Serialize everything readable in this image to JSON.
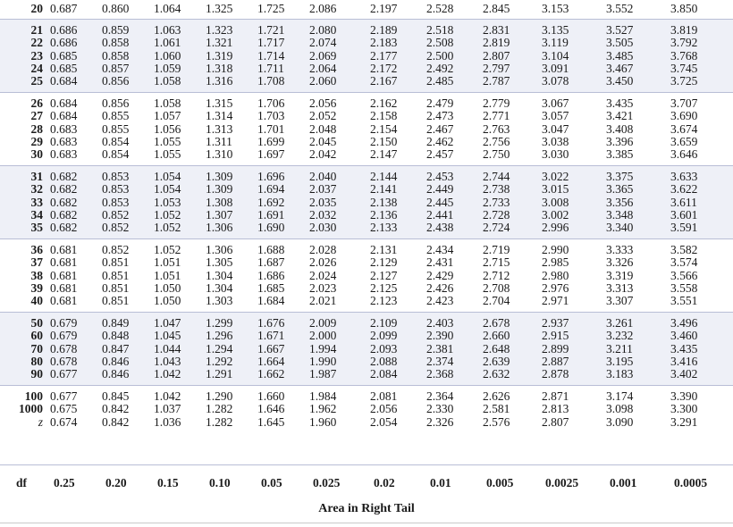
{
  "table": {
    "columns": [
      "0.25",
      "0.20",
      "0.15",
      "0.10",
      "0.05",
      "0.025",
      "0.02",
      "0.01",
      "0.005",
      "0.0025",
      "0.001",
      "0.0005"
    ],
    "rows": [
      {
        "df": "20",
        "values": [
          "0.687",
          "0.860",
          "1.064",
          "1.325",
          "1.725",
          "2.086",
          "2.197",
          "2.528",
          "2.845",
          "3.153",
          "3.552",
          "3.850"
        ]
      },
      {
        "df": "21",
        "values": [
          "0.686",
          "0.859",
          "1.063",
          "1.323",
          "1.721",
          "2.080",
          "2.189",
          "2.518",
          "2.831",
          "3.135",
          "3.527",
          "3.819"
        ]
      },
      {
        "df": "22",
        "values": [
          "0.686",
          "0.858",
          "1.061",
          "1.321",
          "1.717",
          "2.074",
          "2.183",
          "2.508",
          "2.819",
          "3.119",
          "3.505",
          "3.792"
        ]
      },
      {
        "df": "23",
        "values": [
          "0.685",
          "0.858",
          "1.060",
          "1.319",
          "1.714",
          "2.069",
          "2.177",
          "2.500",
          "2.807",
          "3.104",
          "3.485",
          "3.768"
        ]
      },
      {
        "df": "24",
        "values": [
          "0.685",
          "0.857",
          "1.059",
          "1.318",
          "1.711",
          "2.064",
          "2.172",
          "2.492",
          "2.797",
          "3.091",
          "3.467",
          "3.745"
        ]
      },
      {
        "df": "25",
        "values": [
          "0.684",
          "0.856",
          "1.058",
          "1.316",
          "1.708",
          "2.060",
          "2.167",
          "2.485",
          "2.787",
          "3.078",
          "3.450",
          "3.725"
        ]
      },
      {
        "df": "26",
        "values": [
          "0.684",
          "0.856",
          "1.058",
          "1.315",
          "1.706",
          "2.056",
          "2.162",
          "2.479",
          "2.779",
          "3.067",
          "3.435",
          "3.707"
        ]
      },
      {
        "df": "27",
        "values": [
          "0.684",
          "0.855",
          "1.057",
          "1.314",
          "1.703",
          "2.052",
          "2.158",
          "2.473",
          "2.771",
          "3.057",
          "3.421",
          "3.690"
        ]
      },
      {
        "df": "28",
        "values": [
          "0.683",
          "0.855",
          "1.056",
          "1.313",
          "1.701",
          "2.048",
          "2.154",
          "2.467",
          "2.763",
          "3.047",
          "3.408",
          "3.674"
        ]
      },
      {
        "df": "29",
        "values": [
          "0.683",
          "0.854",
          "1.055",
          "1.311",
          "1.699",
          "2.045",
          "2.150",
          "2.462",
          "2.756",
          "3.038",
          "3.396",
          "3.659"
        ]
      },
      {
        "df": "30",
        "values": [
          "0.683",
          "0.854",
          "1.055",
          "1.310",
          "1.697",
          "2.042",
          "2.147",
          "2.457",
          "2.750",
          "3.030",
          "3.385",
          "3.646"
        ]
      },
      {
        "df": "31",
        "values": [
          "0.682",
          "0.853",
          "1.054",
          "1.309",
          "1.696",
          "2.040",
          "2.144",
          "2.453",
          "2.744",
          "3.022",
          "3.375",
          "3.633"
        ]
      },
      {
        "df": "32",
        "values": [
          "0.682",
          "0.853",
          "1.054",
          "1.309",
          "1.694",
          "2.037",
          "2.141",
          "2.449",
          "2.738",
          "3.015",
          "3.365",
          "3.622"
        ]
      },
      {
        "df": "33",
        "values": [
          "0.682",
          "0.853",
          "1.053",
          "1.308",
          "1.692",
          "2.035",
          "2.138",
          "2.445",
          "2.733",
          "3.008",
          "3.356",
          "3.611"
        ]
      },
      {
        "df": "34",
        "values": [
          "0.682",
          "0.852",
          "1.052",
          "1.307",
          "1.691",
          "2.032",
          "2.136",
          "2.441",
          "2.728",
          "3.002",
          "3.348",
          "3.601"
        ]
      },
      {
        "df": "35",
        "values": [
          "0.682",
          "0.852",
          "1.052",
          "1.306",
          "1.690",
          "2.030",
          "2.133",
          "2.438",
          "2.724",
          "2.996",
          "3.340",
          "3.591"
        ]
      },
      {
        "df": "36",
        "values": [
          "0.681",
          "0.852",
          "1.052",
          "1.306",
          "1.688",
          "2.028",
          "2.131",
          "2.434",
          "2.719",
          "2.990",
          "3.333",
          "3.582"
        ]
      },
      {
        "df": "37",
        "values": [
          "0.681",
          "0.851",
          "1.051",
          "1.305",
          "1.687",
          "2.026",
          "2.129",
          "2.431",
          "2.715",
          "2.985",
          "3.326",
          "3.574"
        ]
      },
      {
        "df": "38",
        "values": [
          "0.681",
          "0.851",
          "1.051",
          "1.304",
          "1.686",
          "2.024",
          "2.127",
          "2.429",
          "2.712",
          "2.980",
          "3.319",
          "3.566"
        ]
      },
      {
        "df": "39",
        "values": [
          "0.681",
          "0.851",
          "1.050",
          "1.304",
          "1.685",
          "2.023",
          "2.125",
          "2.426",
          "2.708",
          "2.976",
          "3.313",
          "3.558"
        ]
      },
      {
        "df": "40",
        "values": [
          "0.681",
          "0.851",
          "1.050",
          "1.303",
          "1.684",
          "2.021",
          "2.123",
          "2.423",
          "2.704",
          "2.971",
          "3.307",
          "3.551"
        ]
      },
      {
        "df": "50",
        "values": [
          "0.679",
          "0.849",
          "1.047",
          "1.299",
          "1.676",
          "2.009",
          "2.109",
          "2.403",
          "2.678",
          "2.937",
          "3.261",
          "3.496"
        ]
      },
      {
        "df": "60",
        "values": [
          "0.679",
          "0.848",
          "1.045",
          "1.296",
          "1.671",
          "2.000",
          "2.099",
          "2.390",
          "2.660",
          "2.915",
          "3.232",
          "3.460"
        ]
      },
      {
        "df": "70",
        "values": [
          "0.678",
          "0.847",
          "1.044",
          "1.294",
          "1.667",
          "1.994",
          "2.093",
          "2.381",
          "2.648",
          "2.899",
          "3.211",
          "3.435"
        ]
      },
      {
        "df": "80",
        "values": [
          "0.678",
          "0.846",
          "1.043",
          "1.292",
          "1.664",
          "1.990",
          "2.088",
          "2.374",
          "2.639",
          "2.887",
          "3.195",
          "3.416"
        ]
      },
      {
        "df": "90",
        "values": [
          "0.677",
          "0.846",
          "1.042",
          "1.291",
          "1.662",
          "1.987",
          "2.084",
          "2.368",
          "2.632",
          "2.878",
          "3.183",
          "3.402"
        ]
      },
      {
        "df": "100",
        "values": [
          "0.677",
          "0.845",
          "1.042",
          "1.290",
          "1.660",
          "1.984",
          "2.081",
          "2.364",
          "2.626",
          "2.871",
          "3.174",
          "3.390"
        ]
      },
      {
        "df": "1000",
        "values": [
          "0.675",
          "0.842",
          "1.037",
          "1.282",
          "1.646",
          "1.962",
          "2.056",
          "2.330",
          "2.581",
          "2.813",
          "3.098",
          "3.300"
        ]
      },
      {
        "df": "z",
        "values": [
          "0.674",
          "0.842",
          "1.036",
          "1.282",
          "1.645",
          "1.960",
          "2.054",
          "2.326",
          "2.576",
          "2.807",
          "3.090",
          "3.291"
        ]
      }
    ],
    "groups": [
      [
        0,
        0
      ],
      [
        1,
        5
      ],
      [
        6,
        10
      ],
      [
        11,
        15
      ],
      [
        16,
        20
      ],
      [
        21,
        25
      ],
      [
        26,
        28
      ]
    ],
    "footer_df_label": "df",
    "caption": "Area in Right Tail"
  },
  "colors": {
    "shade": "#eef0f7",
    "rule": "#b9bed6"
  }
}
